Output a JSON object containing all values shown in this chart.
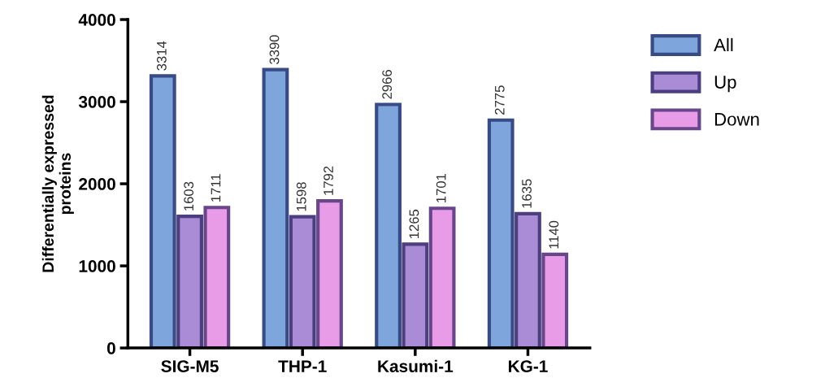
{
  "chart_data": {
    "type": "bar",
    "ylabel": "Differentially expressed\nproteins",
    "categories": [
      "SIG-M5",
      "THP-1",
      "Kasumi-1",
      "KG-1"
    ],
    "series": [
      {
        "name": "All",
        "color": "#7ea6dc",
        "values": [
          3314,
          3390,
          2966,
          2775
        ]
      },
      {
        "name": "Up",
        "color": "#a98bd6",
        "values": [
          1603,
          1598,
          1265,
          1635
        ]
      },
      {
        "name": "Down",
        "color": "#e89be6",
        "values": [
          1711,
          1792,
          1701,
          1140
        ]
      }
    ],
    "ylim": [
      0,
      4000
    ],
    "yticks": [
      0,
      1000,
      2000,
      3000,
      4000
    ],
    "grid": false,
    "legend": "right",
    "data_labels": true
  }
}
